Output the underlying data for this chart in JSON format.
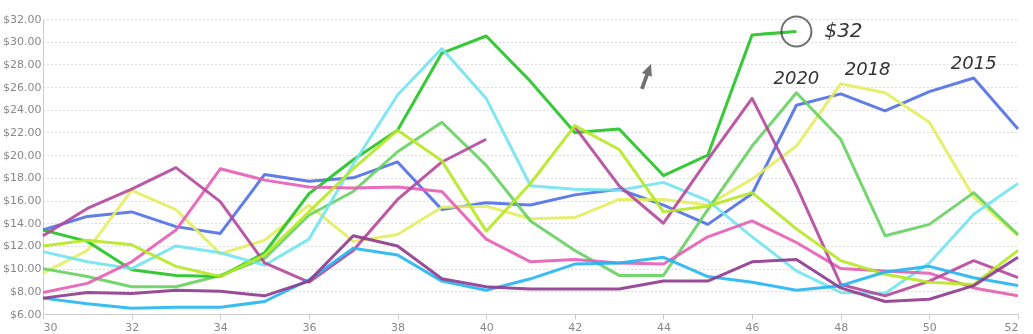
{
  "chart_data": {
    "type": "line",
    "x": [
      30,
      31,
      32,
      33,
      34,
      35,
      36,
      37,
      38,
      39,
      40,
      41,
      42,
      43,
      44,
      45,
      46,
      47,
      48,
      49,
      50,
      51,
      52
    ],
    "series": [
      {
        "name": "2015",
        "color": "#4f6fe6",
        "values": [
          13.4,
          14.6,
          15.0,
          13.7,
          13.1,
          18.3,
          17.7,
          18.0,
          19.4,
          15.2,
          15.8,
          15.6,
          16.5,
          17.0,
          15.6,
          13.9,
          16.6,
          24.4,
          25.4,
          23.9,
          25.6,
          26.8,
          22.3
        ]
      },
      {
        "name": "2018",
        "color": "#e2ee5e",
        "values": [
          9.6,
          11.6,
          16.9,
          15.2,
          11.3,
          12.5,
          15.6,
          12.4,
          13.0,
          15.4,
          15.5,
          14.4,
          14.5,
          16.1,
          16.1,
          15.6,
          17.9,
          20.8,
          26.3,
          25.5,
          22.9,
          16.3,
          12.9
        ]
      },
      {
        "name": "2020",
        "color": "#66d160",
        "values": [
          10.0,
          9.3,
          8.4,
          8.4,
          9.4,
          10.9,
          14.7,
          16.8,
          20.3,
          22.9,
          19.1,
          14.2,
          11.6,
          9.4,
          9.4,
          15.2,
          20.8,
          25.5,
          21.4,
          12.9,
          13.9,
          16.7,
          13.0
        ]
      },
      {
        "color": "#22c322",
        "values": [
          13.4,
          12.4,
          9.9,
          9.4,
          9.3,
          11.4,
          16.6,
          19.6,
          22.2,
          29.0,
          30.5,
          26.5,
          22.0,
          22.3,
          18.2,
          20.0,
          30.6,
          30.9,
          null,
          null,
          null,
          null,
          null
        ]
      },
      {
        "color": "#72e4f0",
        "values": [
          11.5,
          10.6,
          10.0,
          12.0,
          11.4,
          10.3,
          12.6,
          19.2,
          25.3,
          29.4,
          25.0,
          17.3,
          17.0,
          16.9,
          17.6,
          16.0,
          12.8,
          9.8,
          7.9,
          7.8,
          10.5,
          14.8,
          17.5
        ]
      },
      {
        "color": "#e55db2",
        "values": [
          7.9,
          8.7,
          10.6,
          13.4,
          18.8,
          17.8,
          17.2,
          17.1,
          17.2,
          16.8,
          12.6,
          10.6,
          10.8,
          10.5,
          10.4,
          12.8,
          14.2,
          12.3,
          10.0,
          9.8,
          9.6,
          8.3,
          7.6
        ]
      },
      {
        "color": "#b5479a",
        "values": [
          12.9,
          15.3,
          17.0,
          18.9,
          15.9,
          10.5,
          8.8,
          11.6,
          16.1,
          19.4,
          21.4,
          null,
          22.5,
          17.3,
          14.0,
          19.6,
          25.0,
          17.3,
          8.6,
          7.6,
          8.9,
          10.7,
          9.2
        ]
      },
      {
        "color": "#b6e824",
        "values": [
          12.0,
          12.5,
          12.1,
          10.2,
          9.3,
          11.2,
          15.0,
          18.8,
          22.2,
          19.5,
          13.3,
          17.5,
          22.6,
          20.5,
          15.0,
          15.5,
          16.7,
          13.5,
          10.7,
          9.5,
          8.8,
          8.6,
          11.6
        ]
      },
      {
        "color": "#22b5f0",
        "values": [
          7.4,
          6.9,
          6.5,
          6.6,
          6.6,
          7.1,
          9.0,
          11.8,
          11.2,
          8.9,
          8.1,
          9.1,
          10.4,
          10.5,
          11.0,
          9.3,
          8.8,
          8.1,
          8.5,
          9.7,
          10.2,
          9.2,
          8.5
        ]
      },
      {
        "color": "#8e3a8e",
        "values": [
          7.4,
          7.9,
          7.8,
          8.1,
          8.0,
          7.6,
          8.9,
          12.9,
          12.0,
          9.1,
          8.4,
          8.2,
          8.2,
          8.2,
          8.9,
          8.9,
          10.6,
          10.8,
          8.3,
          7.1,
          7.3,
          8.5,
          11.0
        ]
      }
    ],
    "xlim": [
      30,
      52
    ],
    "xticks": [
      30,
      32,
      34,
      36,
      38,
      40,
      42,
      44,
      46,
      48,
      50,
      52
    ],
    "ylim": [
      6,
      32
    ],
    "yticks": [
      {
        "value": 6,
        "label": "$6.00"
      },
      {
        "value": 8,
        "label": "$8.00"
      },
      {
        "value": 10,
        "label": "$10.00"
      },
      {
        "value": 12,
        "label": "$12.00"
      },
      {
        "value": 14,
        "label": "$14.00"
      },
      {
        "value": 16,
        "label": "$16.00"
      },
      {
        "value": 18,
        "label": "$18.00"
      },
      {
        "value": 20,
        "label": "$20.00"
      },
      {
        "value": 22,
        "label": "$22.00"
      },
      {
        "value": 24,
        "label": "$24.00"
      },
      {
        "value": 26,
        "label": "$26.00"
      },
      {
        "value": 28,
        "label": "$28.00"
      },
      {
        "value": 30,
        "label": "$30.00"
      },
      {
        "value": 32,
        "label": "$32.00"
      }
    ],
    "grid": "y",
    "marker": "none",
    "line_style": "solid",
    "annotations": [
      {
        "text": "$32",
        "x": 47,
        "y": 30.9
      }
    ]
  }
}
